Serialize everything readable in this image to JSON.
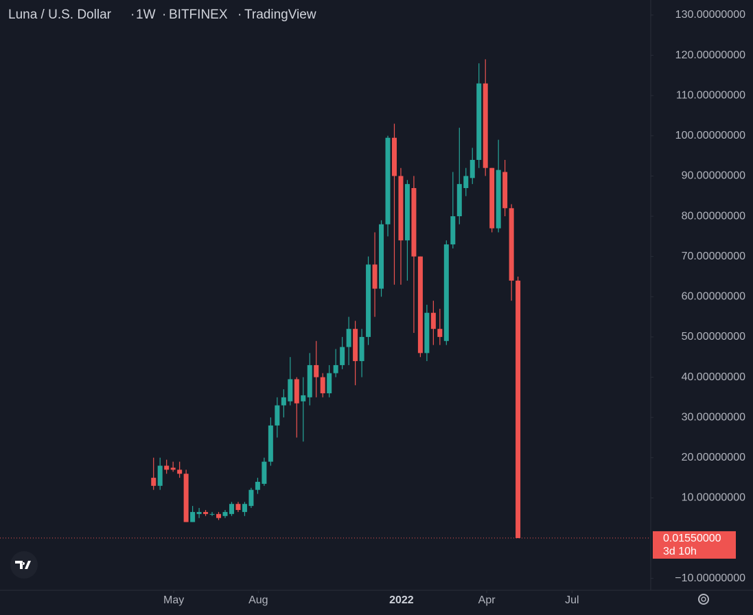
{
  "chart_data": {
    "type": "candlestick",
    "title_parts": [
      "Luna / U.S. Dollar",
      "1W",
      "BITFINEX",
      "TradingView"
    ],
    "x": [
      0,
      1,
      2,
      3,
      4,
      5,
      6,
      7,
      8,
      9,
      10,
      11,
      12,
      13,
      14,
      15,
      16,
      17,
      18,
      19,
      20,
      21,
      22,
      23,
      24,
      25,
      26,
      27,
      28,
      29,
      30,
      31,
      32,
      33,
      34,
      35,
      36,
      37,
      38,
      39,
      40,
      41,
      42,
      43,
      44,
      45,
      46,
      47,
      48,
      49,
      50,
      51,
      52,
      53,
      54,
      55,
      56
    ],
    "open": [
      15,
      13,
      18,
      17.5,
      17,
      16,
      4,
      6,
      6.5,
      6,
      6,
      5.5,
      6,
      8.5,
      6.5,
      8,
      12,
      13.5,
      19,
      28,
      33,
      34,
      39.5,
      34,
      35,
      43,
      40,
      36,
      41,
      43,
      47.5,
      52,
      44,
      50,
      68,
      62,
      78,
      99.5,
      90,
      74,
      87,
      70,
      46,
      56,
      52,
      49,
      73,
      80,
      87,
      89.5,
      94,
      113,
      92,
      77,
      91,
      82,
      64
    ],
    "high": [
      20,
      20,
      19.5,
      19,
      19,
      17,
      8,
      7.5,
      7,
      6.5,
      6.5,
      7,
      9,
      9,
      9,
      12.5,
      15,
      20,
      30,
      35,
      37,
      45,
      40,
      40,
      46,
      49,
      41,
      43,
      47,
      50,
      55,
      54,
      52,
      70,
      76,
      79,
      100,
      103,
      92,
      89,
      90,
      70,
      58,
      59,
      57,
      74,
      91,
      102,
      92,
      97,
      118,
      119,
      92,
      99,
      94,
      83,
      65
    ],
    "low": [
      12,
      12,
      16,
      16.5,
      15,
      4,
      4,
      5,
      5.5,
      5.5,
      4.5,
      5,
      5.5,
      6.5,
      5.5,
      7.5,
      11,
      13,
      18,
      25,
      30,
      33,
      25,
      24,
      33,
      35,
      35,
      35,
      40,
      42,
      43,
      38,
      40,
      48,
      55,
      60,
      75,
      63,
      63,
      64,
      51,
      45,
      44,
      48,
      48,
      48,
      72,
      78,
      85,
      88,
      92,
      90,
      76,
      76,
      80,
      59,
      0
    ],
    "close": [
      13,
      18,
      17,
      17,
      16,
      4,
      6.5,
      6.5,
      6,
      6,
      5,
      6.5,
      8.5,
      7,
      8.5,
      12,
      14,
      19,
      28,
      33,
      35,
      39.5,
      33.5,
      35.5,
      43,
      40,
      36,
      41,
      43,
      47.5,
      52,
      44,
      50,
      68,
      62,
      78,
      99.5,
      90,
      74,
      88,
      70,
      46,
      56,
      52,
      50,
      73,
      80,
      88,
      90,
      94,
      113,
      92,
      77,
      91.5,
      82,
      64,
      0.0155
    ],
    "up_color": "#26a69a",
    "down_color": "#ef5350",
    "xlim": [
      -23.6,
      76.4
    ],
    "xticks": [
      {
        "value": 3.1,
        "label": "May"
      },
      {
        "value": 16.1,
        "label": "Aug"
      },
      {
        "value": 38.1,
        "label": "2022"
      },
      {
        "value": 51.2,
        "label": "Apr"
      },
      {
        "value": 64.3,
        "label": "Jul"
      }
    ],
    "ylim": [
      -12.96,
      133.74
    ],
    "yticks": [
      {
        "value": 130,
        "label": "130.00000000"
      },
      {
        "value": 120,
        "label": "120.00000000"
      },
      {
        "value": 110,
        "label": "110.00000000"
      },
      {
        "value": 100,
        "label": "100.00000000"
      },
      {
        "value": 90,
        "label": "90.00000000"
      },
      {
        "value": 80,
        "label": "80.00000000"
      },
      {
        "value": 70,
        "label": "70.00000000"
      },
      {
        "value": 60,
        "label": "60.00000000"
      },
      {
        "value": 50,
        "label": "50.00000000"
      },
      {
        "value": 40,
        "label": "40.00000000"
      },
      {
        "value": 30,
        "label": "30.00000000"
      },
      {
        "value": 20,
        "label": "20.00000000"
      },
      {
        "value": 10,
        "label": "10.00000000"
      },
      {
        "value": -10,
        "label": "−10.00000000"
      }
    ],
    "last_price": {
      "value": 0.0155,
      "label": "0.01550000"
    },
    "countdown": "3d 10h"
  }
}
